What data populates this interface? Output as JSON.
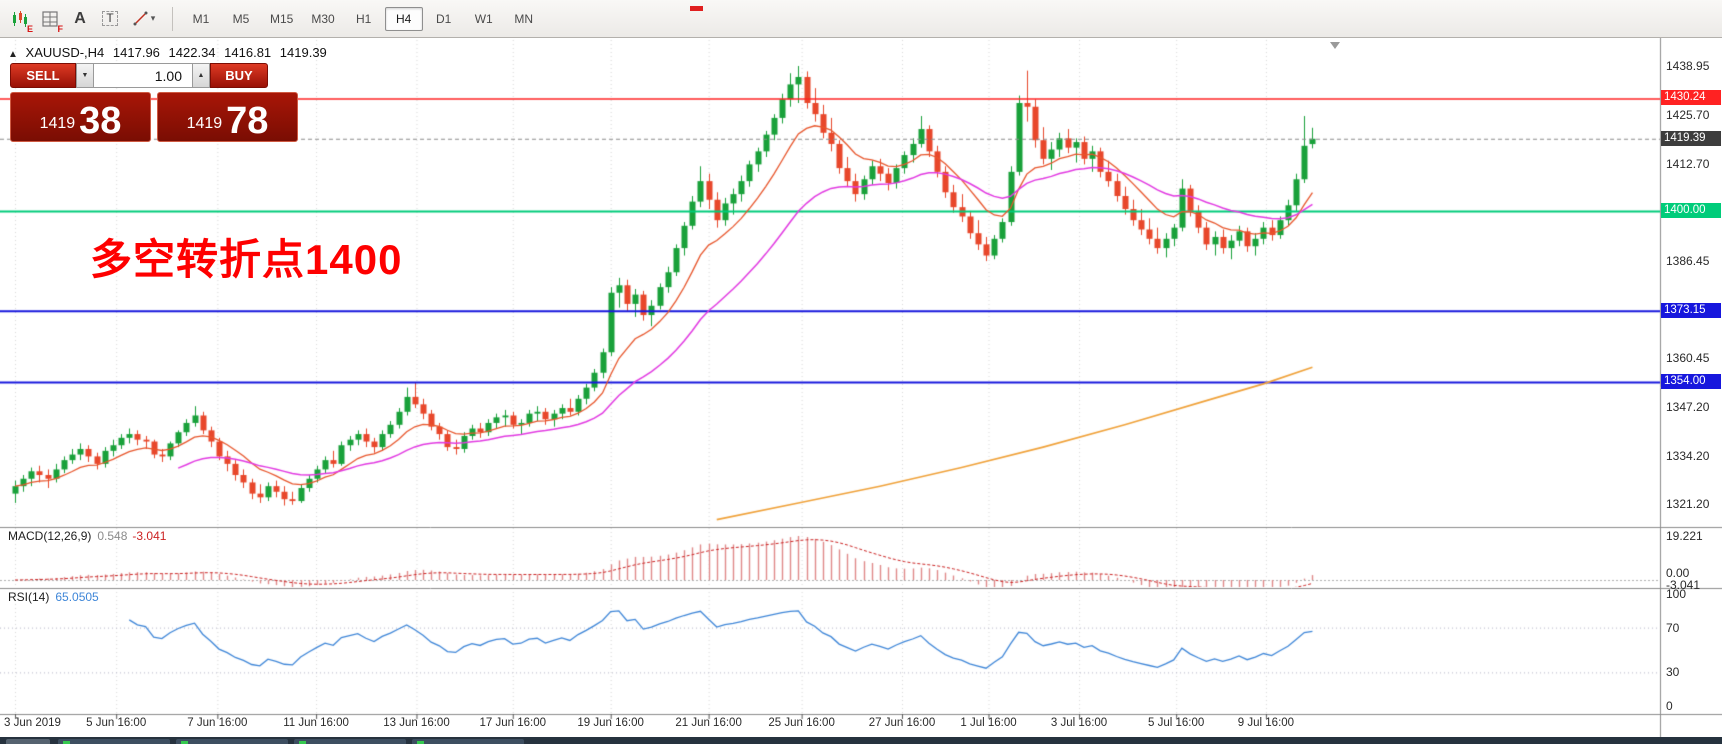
{
  "toolbar": {
    "tools": [
      {
        "name": "candlestick-chart-icon",
        "badge": "E"
      },
      {
        "name": "template-grid-icon",
        "badge": "F"
      },
      {
        "name": "text-label-icon",
        "glyph": "A"
      },
      {
        "name": "text-box-icon",
        "glyph": "T"
      },
      {
        "name": "line-tools-icon",
        "caret": "▾"
      }
    ],
    "timeframes": [
      "M1",
      "M5",
      "M15",
      "M30",
      "H1",
      "H4",
      "D1",
      "W1",
      "MN"
    ],
    "active_timeframe": "H4"
  },
  "chart": {
    "collapse_glyph": "▲",
    "symbol_period": "XAUUSD-,H4",
    "ohlc": {
      "open": "1417.96",
      "high": "1422.34",
      "low": "1416.81",
      "close": "1419.39"
    },
    "annotation": "多空转折点1400",
    "annotation_color": "#fe0000"
  },
  "trade": {
    "sell_label": "SELL",
    "buy_label": "BUY",
    "volume": "1.00",
    "spin_down": "▼",
    "spin_up": "▲",
    "bid": {
      "small": "1419",
      "big": "38"
    },
    "ask": {
      "small": "1419",
      "big": "78"
    }
  },
  "indicators": {
    "macd": {
      "name": "MACD(12,26,9)",
      "value_main": "0.548",
      "value_signal": "-3.041"
    },
    "rsi": {
      "name": "RSI(14)",
      "value": "65.0505"
    }
  },
  "bottom_bar": {
    "tab_count": 4
  },
  "chart_data": {
    "type": "candlestick",
    "symbol": "XAUUSD-",
    "timeframe": "H4",
    "ohlc_current": {
      "open": 1417.96,
      "high": 1422.34,
      "low": 1416.81,
      "close": 1419.39
    },
    "up_color": "#19a13a",
    "down_color": "#e8472b",
    "candles": [
      [
        1324,
        1327.5,
        1321.5,
        1326
      ],
      [
        1326,
        1329,
        1324.5,
        1328
      ],
      [
        1328,
        1331,
        1326,
        1330
      ],
      [
        1330,
        1331.5,
        1327,
        1329
      ],
      [
        1329,
        1330.5,
        1325.5,
        1328
      ],
      [
        1328,
        1332,
        1327,
        1330.5
      ],
      [
        1330.5,
        1334,
        1329.5,
        1333
      ],
      [
        1333,
        1336,
        1332,
        1334.5
      ],
      [
        1334.5,
        1337.5,
        1333,
        1336
      ],
      [
        1336,
        1337,
        1332.5,
        1334
      ],
      [
        1334,
        1335,
        1330.5,
        1332
      ],
      [
        1332,
        1336.5,
        1331,
        1335.5
      ],
      [
        1335.5,
        1338.5,
        1334,
        1337
      ],
      [
        1337,
        1340,
        1336,
        1339
      ],
      [
        1339,
        1341.5,
        1337.5,
        1340
      ],
      [
        1340,
        1341,
        1337,
        1338.5
      ],
      [
        1338.5,
        1339.5,
        1336,
        1338
      ],
      [
        1338,
        1338.5,
        1333.5,
        1334.5
      ],
      [
        1334.5,
        1336,
        1332.5,
        1334
      ],
      [
        1334,
        1338,
        1333,
        1337.5
      ],
      [
        1337.5,
        1341,
        1336.5,
        1340.5
      ],
      [
        1340.5,
        1344,
        1339.5,
        1343
      ],
      [
        1343,
        1347.5,
        1342,
        1345
      ],
      [
        1345,
        1346,
        1340,
        1341
      ],
      [
        1341,
        1342,
        1336.5,
        1338
      ],
      [
        1338,
        1339,
        1333,
        1334
      ],
      [
        1334,
        1335.5,
        1330,
        1332
      ],
      [
        1332,
        1333,
        1327.5,
        1329
      ],
      [
        1329,
        1330.5,
        1325.5,
        1327
      ],
      [
        1327,
        1328,
        1322.5,
        1324
      ],
      [
        1324,
        1326.5,
        1321.5,
        1323
      ],
      [
        1323,
        1327,
        1322,
        1326
      ],
      [
        1326,
        1327.5,
        1323,
        1324.5
      ],
      [
        1324.5,
        1326,
        1320.8,
        1322.5
      ],
      [
        1322.5,
        1324.5,
        1321,
        1322
      ],
      [
        1322,
        1326.5,
        1321.5,
        1325.5
      ],
      [
        1325.5,
        1329,
        1324.5,
        1328
      ],
      [
        1328,
        1331.5,
        1327,
        1330.5
      ],
      [
        1330.5,
        1334,
        1329.5,
        1333
      ],
      [
        1333,
        1335.5,
        1331,
        1332
      ],
      [
        1332,
        1338,
        1331.5,
        1337
      ],
      [
        1337,
        1339.5,
        1335.5,
        1338.5
      ],
      [
        1338.5,
        1341,
        1337,
        1340
      ],
      [
        1340,
        1341.5,
        1336.5,
        1338
      ],
      [
        1338,
        1339,
        1335,
        1336.5
      ],
      [
        1336.5,
        1341,
        1335.5,
        1340
      ],
      [
        1340,
        1343.5,
        1339,
        1342.5
      ],
      [
        1342.5,
        1347,
        1341.5,
        1346
      ],
      [
        1346,
        1352.5,
        1345,
        1350
      ],
      [
        1350,
        1354,
        1347,
        1348
      ],
      [
        1348,
        1349.5,
        1344,
        1345.5
      ],
      [
        1345.5,
        1346.5,
        1341,
        1342
      ],
      [
        1342,
        1343,
        1338.5,
        1340
      ],
      [
        1340,
        1341,
        1335.5,
        1336.5
      ],
      [
        1336.5,
        1338.5,
        1334.5,
        1336
      ],
      [
        1336,
        1340.5,
        1335,
        1339.5
      ],
      [
        1339.5,
        1342.5,
        1338.5,
        1341.5
      ],
      [
        1341.5,
        1343,
        1339,
        1340.5
      ],
      [
        1340.5,
        1344,
        1339.5,
        1343
      ],
      [
        1343,
        1345.5,
        1341.5,
        1344.5
      ],
      [
        1344.5,
        1346.5,
        1342,
        1345
      ],
      [
        1345,
        1346,
        1341.5,
        1342.5
      ],
      [
        1342.5,
        1344,
        1340,
        1343
      ],
      [
        1343,
        1346.5,
        1342,
        1345.5
      ],
      [
        1345.5,
        1347.5,
        1343.5,
        1346
      ],
      [
        1346,
        1347,
        1342.5,
        1344
      ],
      [
        1344,
        1346.5,
        1342,
        1345.5
      ],
      [
        1345.5,
        1348,
        1344,
        1347
      ],
      [
        1347,
        1349.5,
        1345,
        1346
      ],
      [
        1346,
        1350.5,
        1345,
        1349.5
      ],
      [
        1349.5,
        1353.5,
        1348,
        1352.5
      ],
      [
        1352.5,
        1357.5,
        1351.5,
        1356.5
      ],
      [
        1356.5,
        1363,
        1355,
        1362
      ],
      [
        1362,
        1379.5,
        1361,
        1378
      ],
      [
        1378,
        1382,
        1374,
        1380
      ],
      [
        1380,
        1381.5,
        1373,
        1375
      ],
      [
        1375,
        1379,
        1371.5,
        1377.5
      ],
      [
        1377.5,
        1378.5,
        1370.5,
        1372
      ],
      [
        1372,
        1376,
        1369,
        1374.5
      ],
      [
        1374.5,
        1380.5,
        1373.5,
        1379.5
      ],
      [
        1379.5,
        1385,
        1378,
        1383.5
      ],
      [
        1383.5,
        1391,
        1382.5,
        1390
      ],
      [
        1390,
        1397,
        1388,
        1396
      ],
      [
        1396,
        1404,
        1395,
        1402.5
      ],
      [
        1402.5,
        1412,
        1401,
        1408
      ],
      [
        1408,
        1410,
        1400.5,
        1403
      ],
      [
        1403,
        1405,
        1395.5,
        1397.5
      ],
      [
        1397.5,
        1403.5,
        1396,
        1402
      ],
      [
        1402,
        1406,
        1399,
        1404.5
      ],
      [
        1404.5,
        1409.5,
        1402.5,
        1408
      ],
      [
        1408,
        1413.5,
        1406.5,
        1412.5
      ],
      [
        1412.5,
        1417,
        1410.5,
        1416
      ],
      [
        1416,
        1421.5,
        1414.5,
        1420.5
      ],
      [
        1420.5,
        1426,
        1419,
        1425
      ],
      [
        1425,
        1431.5,
        1423.5,
        1430
      ],
      [
        1430,
        1437,
        1428,
        1434
      ],
      [
        1434,
        1438.95,
        1429,
        1436
      ],
      [
        1436,
        1437.5,
        1427.5,
        1429
      ],
      [
        1429,
        1433,
        1424,
        1426
      ],
      [
        1426,
        1428.5,
        1419.5,
        1421
      ],
      [
        1421,
        1425,
        1416,
        1418
      ],
      [
        1418,
        1419,
        1410,
        1411.5
      ],
      [
        1411.5,
        1414.5,
        1406.5,
        1408
      ],
      [
        1408,
        1410,
        1402.5,
        1404.5
      ],
      [
        1404.5,
        1409.5,
        1403,
        1408.5
      ],
      [
        1408.5,
        1413.5,
        1407,
        1412
      ],
      [
        1412,
        1414,
        1408,
        1410
      ],
      [
        1410,
        1411.5,
        1405.5,
        1407.5
      ],
      [
        1407.5,
        1412.5,
        1406,
        1411.5
      ],
      [
        1411.5,
        1416,
        1410,
        1415
      ],
      [
        1415,
        1419.5,
        1413,
        1418
      ],
      [
        1418,
        1425.5,
        1417,
        1422
      ],
      [
        1422,
        1423,
        1414.5,
        1416
      ],
      [
        1416,
        1417.5,
        1409,
        1410.5
      ],
      [
        1410.5,
        1412,
        1403.5,
        1405
      ],
      [
        1405,
        1407,
        1399.5,
        1401
      ],
      [
        1401,
        1404.5,
        1397,
        1398.5
      ],
      [
        1398.5,
        1400,
        1392.5,
        1394
      ],
      [
        1394,
        1397.5,
        1389.5,
        1391
      ],
      [
        1391,
        1393,
        1386.5,
        1388
      ],
      [
        1388,
        1393.5,
        1387,
        1392.5
      ],
      [
        1392.5,
        1398,
        1391.5,
        1397
      ],
      [
        1397,
        1412,
        1396,
        1410.5
      ],
      [
        1410.5,
        1431,
        1409.5,
        1429
      ],
      [
        1429,
        1437.7,
        1424,
        1428
      ],
      [
        1428,
        1430,
        1417,
        1419
      ],
      [
        1419,
        1422.5,
        1412.5,
        1414
      ],
      [
        1414,
        1418.5,
        1411,
        1416.5
      ],
      [
        1416.5,
        1421,
        1414.5,
        1419.5
      ],
      [
        1419.5,
        1422,
        1415.5,
        1417
      ],
      [
        1417,
        1419.5,
        1413,
        1418.5
      ],
      [
        1418.5,
        1420,
        1412.5,
        1414
      ],
      [
        1414,
        1417.5,
        1410.5,
        1416
      ],
      [
        1416,
        1417,
        1409,
        1410.5
      ],
      [
        1410.5,
        1413.5,
        1406.5,
        1408
      ],
      [
        1408,
        1410,
        1402.5,
        1404
      ],
      [
        1404,
        1406.5,
        1399,
        1400.5
      ],
      [
        1400.5,
        1403,
        1396,
        1397.5
      ],
      [
        1397.5,
        1400.5,
        1393.5,
        1395
      ],
      [
        1395,
        1398,
        1391,
        1392.5
      ],
      [
        1392.5,
        1395.5,
        1388.5,
        1390
      ],
      [
        1390,
        1394,
        1387.5,
        1392.5
      ],
      [
        1392.5,
        1396.5,
        1390.5,
        1395.5
      ],
      [
        1395.5,
        1408.5,
        1394.5,
        1406
      ],
      [
        1406,
        1407,
        1398.5,
        1400
      ],
      [
        1400,
        1401.5,
        1394,
        1395.5
      ],
      [
        1395.5,
        1397,
        1389.5,
        1391
      ],
      [
        1391,
        1394.5,
        1388,
        1393
      ],
      [
        1393,
        1395,
        1388.5,
        1390
      ],
      [
        1390,
        1393.5,
        1387,
        1392
      ],
      [
        1392,
        1396,
        1390.5,
        1394.5
      ],
      [
        1394.5,
        1395.5,
        1389,
        1390.5
      ],
      [
        1390.5,
        1394,
        1388,
        1392.5
      ],
      [
        1392.5,
        1397,
        1391,
        1395.5
      ],
      [
        1395.5,
        1397.5,
        1392,
        1393.5
      ],
      [
        1393.5,
        1398.5,
        1392.5,
        1397.5
      ],
      [
        1397.5,
        1403,
        1396,
        1401.5
      ],
      [
        1401.5,
        1410,
        1400,
        1408.5
      ],
      [
        1408.5,
        1425.5,
        1407.5,
        1417.5
      ],
      [
        1417.96,
        1422.34,
        1416.81,
        1419.39
      ]
    ],
    "time_axis": [
      {
        "label": "3 Jun 2019",
        "i": 0
      },
      {
        "label": "5 Jun 16:00",
        "i": 12.4
      },
      {
        "label": "7 Jun 16:00",
        "i": 24.8
      },
      {
        "label": "11 Jun 16:00",
        "i": 36.9
      },
      {
        "label": "13 Jun 16:00",
        "i": 49.2
      },
      {
        "label": "17 Jun 16:00",
        "i": 61
      },
      {
        "label": "19 Jun 16:00",
        "i": 73
      },
      {
        "label": "21 Jun 16:00",
        "i": 85
      },
      {
        "label": "25 Jun 16:00",
        "i": 96.4
      },
      {
        "label": "27 Jun 16:00",
        "i": 108.7
      },
      {
        "label": "1 Jul 16:00",
        "i": 119.3
      },
      {
        "label": "3 Jul 16:00",
        "i": 130.4
      },
      {
        "label": "5 Jul 16:00",
        "i": 142.3
      },
      {
        "label": "9 Jul 16:00",
        "i": 153.3
      }
    ],
    "price_ticks": [
      "1438.95",
      "1425.70",
      "1412.70",
      "1386.45",
      "1360.45",
      "1347.20",
      "1334.20",
      "1321.20"
    ],
    "price_badges": [
      {
        "label": "1430.24",
        "price": 1430.24,
        "bg": "#ff2222"
      },
      {
        "label": "1419.39",
        "price": 1419.39,
        "bg": "#3d3d3d"
      },
      {
        "label": "1400.00",
        "price": 1400.0,
        "bg": "#00cc7a"
      },
      {
        "label": "1373.15",
        "price": 1373.15,
        "bg": "#1717dd"
      },
      {
        "label": "1354.00",
        "price": 1354.0,
        "bg": "#1717dd"
      }
    ],
    "hlines": [
      {
        "price": 1430.24,
        "color": "#ff2222",
        "width": 1.5
      },
      {
        "price": 1400.0,
        "color": "#00cc7a",
        "width": 2
      },
      {
        "price": 1373.15,
        "color": "#1717dd",
        "width": 2
      },
      {
        "price": 1354.0,
        "color": "#1717dd",
        "width": 2
      }
    ],
    "bid_line": {
      "price": 1419.39,
      "color": "#8a8a8a"
    },
    "ma_fast": {
      "period": 10,
      "color": "#e8562c"
    },
    "ma_mid": {
      "period": 26,
      "color": "#e23ae2",
      "seed": 1312
    },
    "ma_long_color": "#f0a23a",
    "ma_long_points": [
      [
        86,
        1317
      ],
      [
        96,
        1321.5
      ],
      [
        106,
        1326
      ],
      [
        116,
        1331
      ],
      [
        126,
        1336.5
      ],
      [
        136,
        1342.5
      ],
      [
        146,
        1349
      ],
      [
        153,
        1353.5
      ],
      [
        159,
        1358
      ]
    ],
    "macd_panel": {
      "axis_labels": [
        "19.221",
        "0.00",
        "-3.041"
      ],
      "hist_color": "#e08a8a",
      "signal_color": "#cc2222"
    },
    "rsi_panel": {
      "axis_labels": [
        "100",
        "70",
        "30",
        "0"
      ],
      "levels": [
        70,
        30
      ],
      "line_color": "#3e86d8"
    }
  }
}
